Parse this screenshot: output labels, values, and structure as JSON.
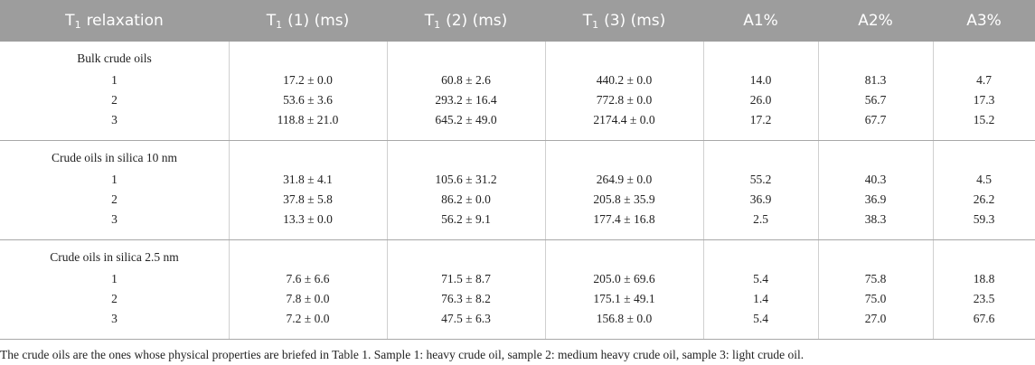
{
  "header": {
    "columns": [
      {
        "main": "T",
        "sub": "1",
        "rest": "relaxation"
      },
      {
        "main": "T",
        "sub": "1",
        "rest": "(1) (ms)"
      },
      {
        "main": "T",
        "sub": "1",
        "rest": "(2) (ms)"
      },
      {
        "main": "T",
        "sub": "1",
        "rest": "(3) (ms)"
      },
      {
        "main": "A1%"
      },
      {
        "main": "A2%"
      },
      {
        "main": "A3%"
      }
    ]
  },
  "groups": [
    {
      "label": "Bulk crude oils",
      "rows": [
        [
          "1",
          "17.2 ± 0.0",
          "60.8 ± 2.6",
          "440.2 ± 0.0",
          "14.0",
          "81.3",
          "4.7"
        ],
        [
          "2",
          "53.6 ± 3.6",
          "293.2 ± 16.4",
          "772.8 ± 0.0",
          "26.0",
          "56.7",
          "17.3"
        ],
        [
          "3",
          "118.8 ± 21.0",
          "645.2 ± 49.0",
          "2174.4 ± 0.0",
          "17.2",
          "67.7",
          "15.2"
        ]
      ]
    },
    {
      "label": "Crude oils in silica 10 nm",
      "rows": [
        [
          "1",
          "31.8 ± 4.1",
          "105.6 ± 31.2",
          "264.9 ± 0.0",
          "55.2",
          "40.3",
          "4.5"
        ],
        [
          "2",
          "37.8 ± 5.8",
          "86.2 ± 0.0",
          "205.8 ± 35.9",
          "36.9",
          "36.9",
          "26.2"
        ],
        [
          "3",
          "13.3 ± 0.0",
          "56.2 ± 9.1",
          "177.4 ± 16.8",
          "2.5",
          "38.3",
          "59.3"
        ]
      ]
    },
    {
      "label": "Crude oils in silica 2.5 nm",
      "rows": [
        [
          "1",
          "7.6 ± 6.6",
          "71.5 ± 8.7",
          "205.0 ± 69.6",
          "5.4",
          "75.8",
          "18.8"
        ],
        [
          "2",
          "7.8 ± 0.0",
          "76.3 ± 8.2",
          "175.1 ± 49.1",
          "1.4",
          "75.0",
          "23.5"
        ],
        [
          "3",
          "7.2 ± 0.0",
          "47.5 ± 6.3",
          "156.8 ± 0.0",
          "5.4",
          "27.0",
          "67.6"
        ]
      ]
    }
  ],
  "footnote": "The crude oils are the ones whose physical properties are briefed in Table 1. Sample 1: heavy crude oil, sample 2: medium heavy crude oil, sample 3: light crude oil."
}
